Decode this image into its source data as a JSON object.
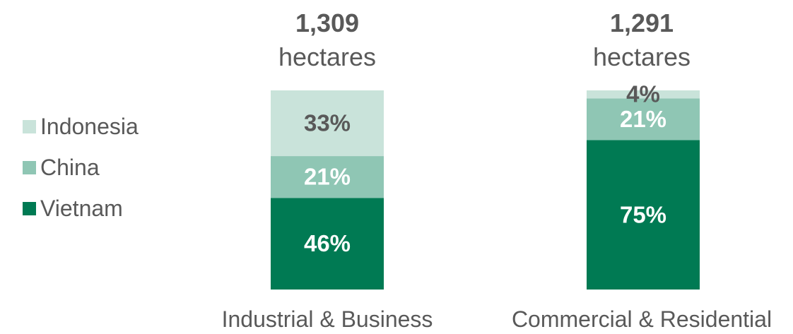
{
  "chart_data": {
    "type": "bar",
    "stacked": true,
    "unit": "%",
    "categories": [
      "Industrial & Business",
      "Commercial & Residential"
    ],
    "totals": [
      {
        "value": "1,309",
        "unit": "hectares"
      },
      {
        "value": "1,291",
        "unit": "hectares"
      }
    ],
    "series": [
      {
        "name": "Vietnam",
        "color": "#007a53",
        "label_color": "#ffffff",
        "values": [
          46,
          75
        ]
      },
      {
        "name": "China",
        "color": "#8fc6b4",
        "label_color": "#ffffff",
        "values": [
          21,
          21
        ]
      },
      {
        "name": "Indonesia",
        "color": "#c9e3da",
        "label_color": "#595959",
        "values": [
          33,
          4
        ]
      }
    ],
    "legend_order": [
      "Indonesia",
      "China",
      "Vietnam"
    ],
    "legend_position": "left"
  }
}
